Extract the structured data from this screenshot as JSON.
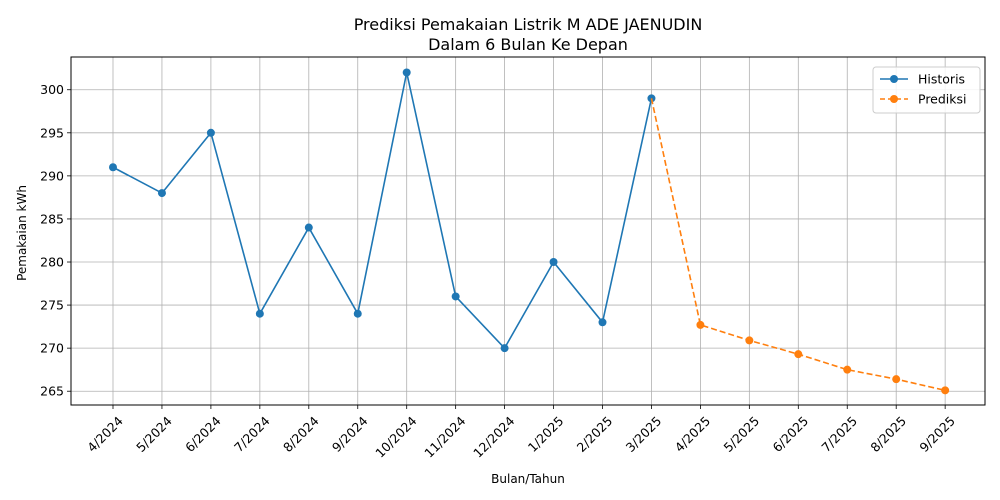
{
  "chart_data": {
    "type": "line",
    "title": "Prediksi Pemakaian Listrik M ADE JAENUDIN",
    "subtitle": "Dalam 6 Bulan Ke Depan",
    "xlabel": "Bulan/Tahun",
    "ylabel": "Pemakaian kWh",
    "ylim": [
      263.4,
      303.8
    ],
    "yticks": [
      265,
      270,
      275,
      280,
      285,
      290,
      295,
      300
    ],
    "grid": true,
    "legend_position": "top-right",
    "categories": [
      "4/2024",
      "5/2024",
      "6/2024",
      "7/2024",
      "8/2024",
      "9/2024",
      "10/2024",
      "11/2024",
      "12/2024",
      "1/2025",
      "2/2025",
      "3/2025",
      "4/2025",
      "5/2025",
      "6/2025",
      "7/2025",
      "8/2025",
      "9/2025"
    ],
    "series": [
      {
        "name": "Historis",
        "color": "#1f77b4",
        "style": "solid",
        "x": [
          "4/2024",
          "5/2024",
          "6/2024",
          "7/2024",
          "8/2024",
          "9/2024",
          "10/2024",
          "11/2024",
          "12/2024",
          "1/2025",
          "2/2025",
          "3/2025"
        ],
        "values": [
          291,
          288,
          295,
          274,
          284,
          274,
          302,
          276,
          270,
          280,
          273,
          299
        ]
      },
      {
        "name": "Prediksi",
        "color": "#ff7f0e",
        "style": "dashed",
        "x": [
          "3/2025",
          "4/2025",
          "5/2025",
          "6/2025",
          "7/2025",
          "8/2025",
          "9/2025"
        ],
        "values": [
          299,
          272.7,
          270.9,
          269.3,
          267.5,
          266.4,
          265.1
        ]
      }
    ],
    "tick_label_colors": {
      "historical": "#000000",
      "forecast": "#ff7f0e"
    }
  }
}
